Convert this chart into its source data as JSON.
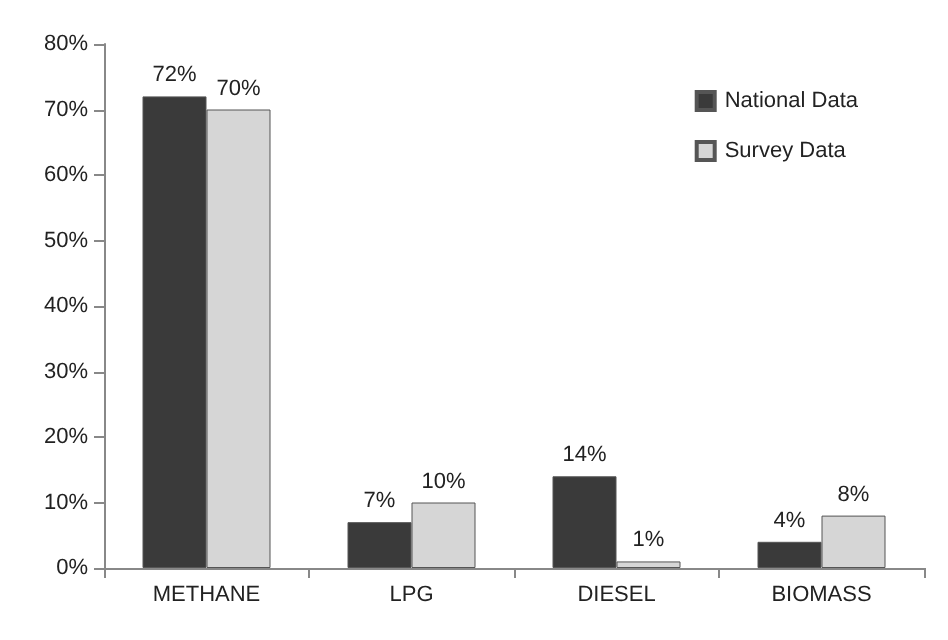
{
  "chart_data": {
    "type": "bar",
    "categories": [
      "METHANE",
      "LPG",
      "DIESEL",
      "BIOMASS"
    ],
    "series": [
      {
        "name": "National Data",
        "color": "#3a3a3a",
        "values": [
          72,
          7,
          14,
          4
        ],
        "value_labels": [
          "72%",
          "7%",
          "14%",
          "4%"
        ]
      },
      {
        "name": "Survey Data",
        "color": "#d6d6d6",
        "values": [
          70,
          10,
          1,
          8
        ],
        "value_labels": [
          "70%",
          "10%",
          "1%",
          "8%"
        ]
      }
    ],
    "ylim": [
      0,
      80
    ],
    "yticks": [
      {
        "value": 0,
        "label": "0%"
      },
      {
        "value": 10,
        "label": "10%"
      },
      {
        "value": 20,
        "label": "20%"
      },
      {
        "value": 30,
        "label": "30%"
      },
      {
        "value": 40,
        "label": "40%"
      },
      {
        "value": 50,
        "label": "50%"
      },
      {
        "value": 60,
        "label": "60%"
      },
      {
        "value": 70,
        "label": "70%"
      },
      {
        "value": 80,
        "label": "80%"
      }
    ],
    "grid": false,
    "legend": "top right"
  }
}
